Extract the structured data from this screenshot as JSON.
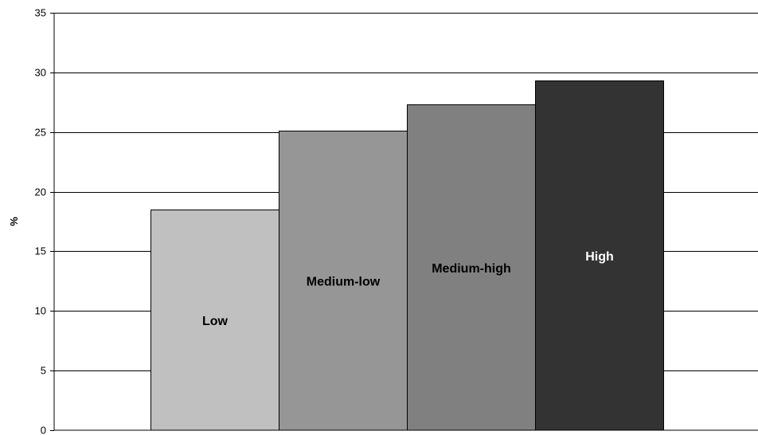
{
  "chart_data": {
    "type": "bar",
    "title": "",
    "xlabel": "",
    "ylabel": "%",
    "ylim": [
      0,
      35
    ],
    "yticks": [
      0,
      5,
      10,
      15,
      20,
      25,
      30,
      35
    ],
    "grid": true,
    "legend": "none",
    "categories": [
      "Low",
      "Medium-low",
      "Medium-high",
      "High"
    ],
    "values": [
      18.5,
      25.1,
      27.3,
      29.3
    ],
    "colors": [
      "#c0c0c0",
      "#969696",
      "#808080",
      "#333333"
    ],
    "label_colors": [
      "#000000",
      "#000000",
      "#000000",
      "#ffffff"
    ]
  }
}
